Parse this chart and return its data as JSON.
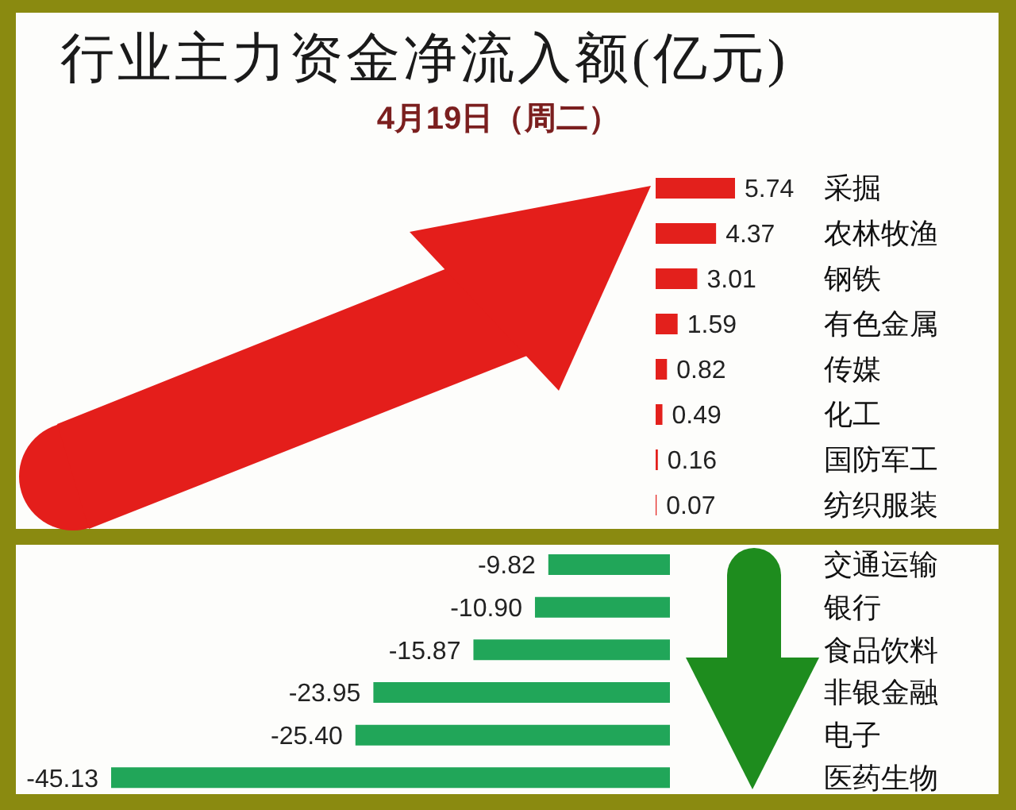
{
  "chart_data": [
    {
      "type": "bar",
      "title": "行业主力资金净流入额(亿元)",
      "subtitle": "4月19日（周二）",
      "orientation": "horizontal",
      "categories": [
        "采掘",
        "农林牧渔",
        "钢铁",
        "有色金属",
        "传媒",
        "化工",
        "国防军工",
        "纺织服装"
      ],
      "values": [
        5.74,
        4.37,
        3.01,
        1.59,
        0.82,
        0.49,
        0.16,
        0.07
      ],
      "value_labels": [
        "5.74",
        "4.37",
        "3.01",
        "1.59",
        "0.82",
        "0.49",
        "0.16",
        "0.07"
      ],
      "color": "#e3201c"
    },
    {
      "type": "bar",
      "orientation": "horizontal",
      "categories": [
        "交通运输",
        "银行",
        "食品饮料",
        "非银金融",
        "电子",
        "医药生物"
      ],
      "values": [
        -9.82,
        -10.9,
        -15.87,
        -23.95,
        -25.4,
        -45.13
      ],
      "value_labels": [
        "-9.82",
        "-10.90",
        "-15.87",
        "-23.95",
        "-25.40",
        "-45.13"
      ],
      "color": "#21a659"
    }
  ]
}
